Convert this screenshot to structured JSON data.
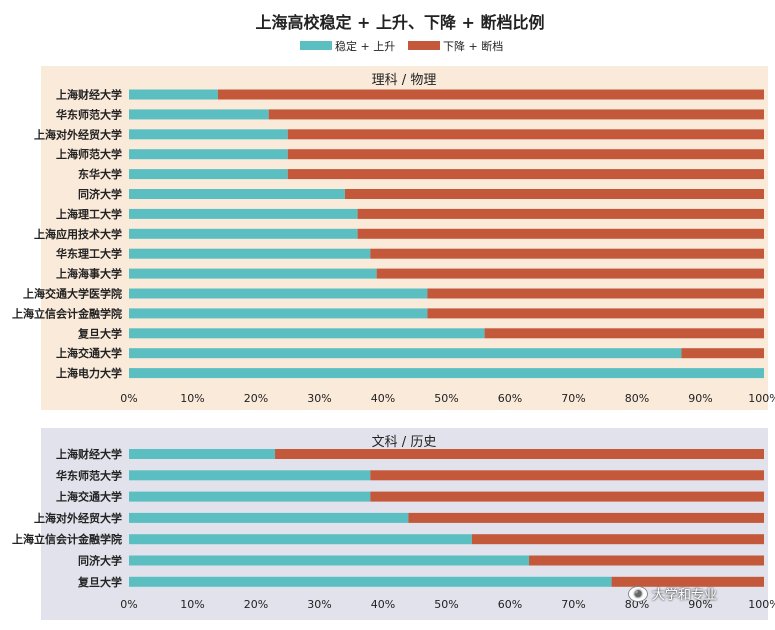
{
  "colors": {
    "stable_rise": "#5bbfc2",
    "fall_cutoff": "#c4583a",
    "panel1_bg": "#faeada",
    "panel2_bg": "#e1e2ec"
  },
  "watermark": {
    "text": "大学和专业",
    "icon": "wechat-icon"
  },
  "chart_data": {
    "type": "bar",
    "title": "上海高校稳定 + 上升、下降 + 断档比例",
    "legend": [
      "稳定 + 上升",
      "下降 + 断档"
    ],
    "legend_position": "top",
    "stacked": true,
    "orientation": "horizontal",
    "xlim": [
      0,
      100
    ],
    "ticks": [
      "0%",
      "10%",
      "20%",
      "30%",
      "40%",
      "50%",
      "60%",
      "70%",
      "80%",
      "90%",
      "100%"
    ],
    "panels": [
      {
        "title": "理科 / 物理",
        "categories": [
          "上海财经大学",
          "华东师范大学",
          "上海对外经贸大学",
          "上海师范大学",
          "东华大学",
          "同济大学",
          "上海理工大学",
          "上海应用技术大学",
          "华东理工大学",
          "上海海事大学",
          "上海交通大学医学院",
          "上海立信会计金融学院",
          "复旦大学",
          "上海交通大学",
          "上海电力大学"
        ],
        "series": [
          {
            "name": "稳定 + 上升",
            "values": [
              14,
              22,
              25,
              25,
              25,
              34,
              36,
              36,
              38,
              39,
              47,
              47,
              56,
              87,
              100
            ]
          },
          {
            "name": "下降 + 断档",
            "values": [
              86,
              78,
              75,
              75,
              75,
              66,
              64,
              64,
              62,
              61,
              53,
              53,
              44,
              13,
              0
            ]
          }
        ]
      },
      {
        "title": "文科 / 历史",
        "categories": [
          "上海财经大学",
          "华东师范大学",
          "上海交通大学",
          "上海对外经贸大学",
          "上海立信会计金融学院",
          "同济大学",
          "复旦大学"
        ],
        "series": [
          {
            "name": "稳定 + 上升",
            "values": [
              23,
              38,
              38,
              44,
              54,
              63,
              76
            ]
          },
          {
            "name": "下降 + 断档",
            "values": [
              77,
              62,
              62,
              56,
              46,
              37,
              24
            ]
          }
        ]
      }
    ]
  }
}
